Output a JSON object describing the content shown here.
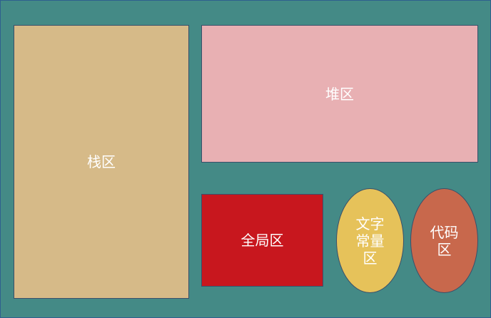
{
  "colors": {
    "background": "#448A86",
    "stack": "#D6BA88",
    "heap": "#E8B0B3",
    "global": "#C8171E",
    "literal": "#E6C25A",
    "code": "#C8684C",
    "text": "#FFFFFF"
  },
  "regions": {
    "stack": {
      "label": "栈区"
    },
    "heap": {
      "label": "堆区"
    },
    "global": {
      "label": "全局区"
    },
    "literal": {
      "label": "文字\n常量\n区"
    },
    "code": {
      "label": "代码\n区"
    }
  }
}
